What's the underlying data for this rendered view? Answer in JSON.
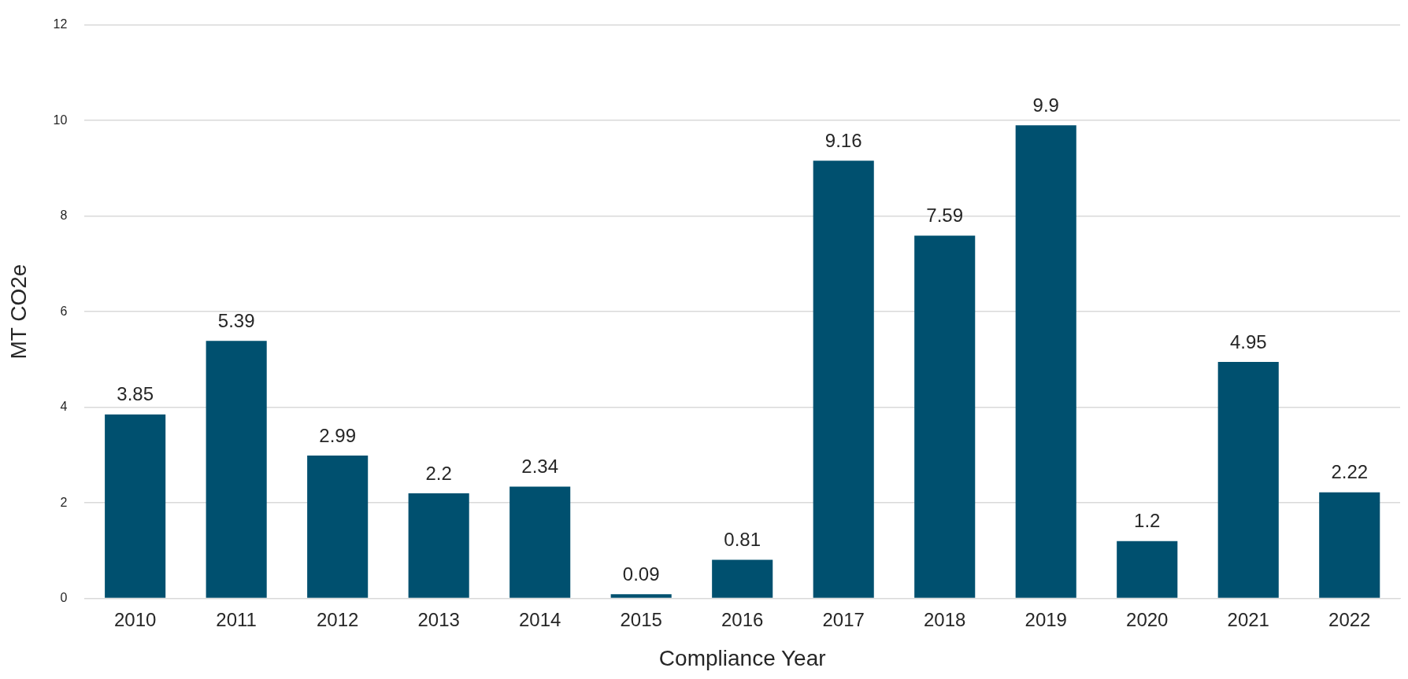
{
  "chart_data": {
    "type": "bar",
    "xlabel": "Compliance Year",
    "ylabel": "MT CO2e",
    "categories": [
      "2010",
      "2011",
      "2012",
      "2013",
      "2014",
      "2015",
      "2016",
      "2017",
      "2018",
      "2019",
      "2020",
      "2021",
      "2022"
    ],
    "values": [
      3.85,
      5.39,
      2.99,
      2.2,
      2.34,
      0.09,
      0.81,
      9.16,
      7.59,
      9.9,
      1.2,
      4.95,
      2.22
    ],
    "color": "#00506f",
    "ylim": [
      0,
      12
    ],
    "yticks": [
      0,
      2,
      4,
      6,
      8,
      10,
      12
    ],
    "grid": "y",
    "data_labels": true,
    "legend": false
  }
}
